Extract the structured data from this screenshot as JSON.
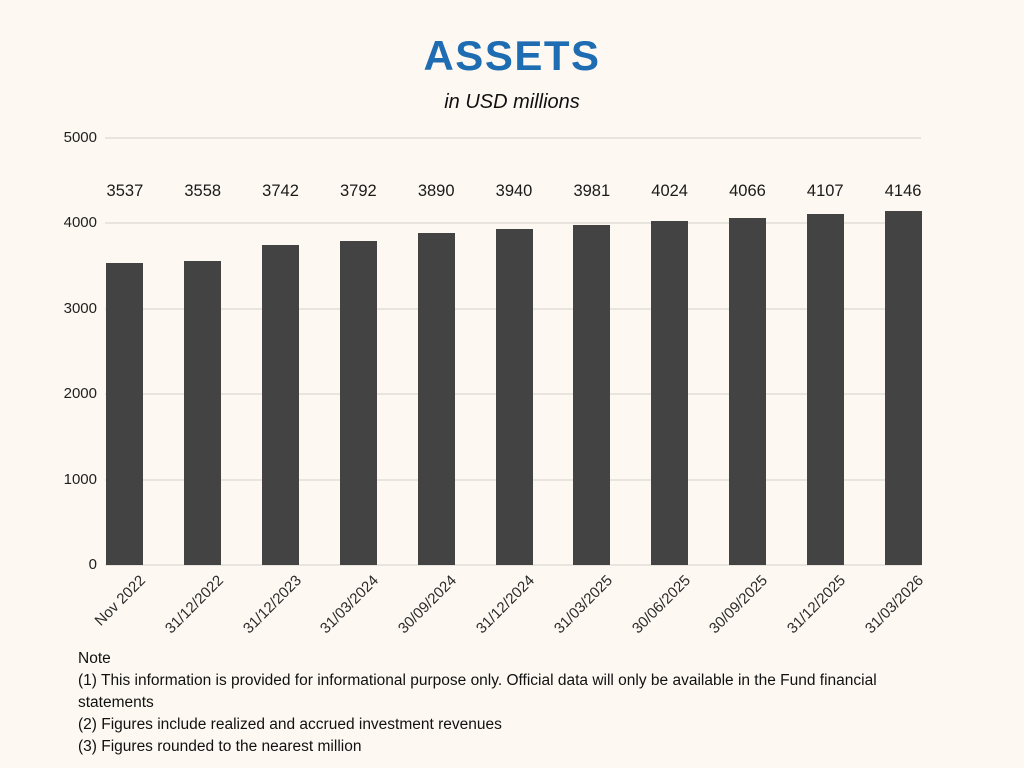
{
  "header": {
    "title": "ASSETS",
    "subtitle": "in USD millions"
  },
  "chart_data": {
    "type": "bar",
    "title": "ASSETS",
    "subtitle": "in USD millions",
    "categories": [
      "Nov 2022",
      "31/12/2022",
      "31/12/2023",
      "31/03/2024",
      "30/09/2024",
      "31/12/2024",
      "31/03/2025",
      "30/06/2025",
      "30/09/2025",
      "31/12/2025",
      "31/03/2026"
    ],
    "values": [
      3537,
      3558,
      3742,
      3792,
      3890,
      3940,
      3981,
      4024,
      4066,
      4107,
      4146
    ],
    "xlabel": "",
    "ylabel": "",
    "ylim": [
      0,
      5000
    ],
    "yticks": [
      0,
      1000,
      2000,
      3000,
      4000,
      5000
    ],
    "grid": true,
    "legend": "none",
    "data_labels": true,
    "colors": {
      "background": "#fdf9f2",
      "bar": "#434343",
      "gridline": "#e8e5de",
      "title": "#1e6cb2",
      "text": "#1c1c1c"
    }
  },
  "note": {
    "heading": "Note",
    "lines": [
      "(1) This information is provided for informational purpose only. Official data will only be available in the Fund financial statements",
      "(2) Figures include realized and accrued investment revenues",
      "(3) Figures rounded to the nearest million"
    ]
  }
}
